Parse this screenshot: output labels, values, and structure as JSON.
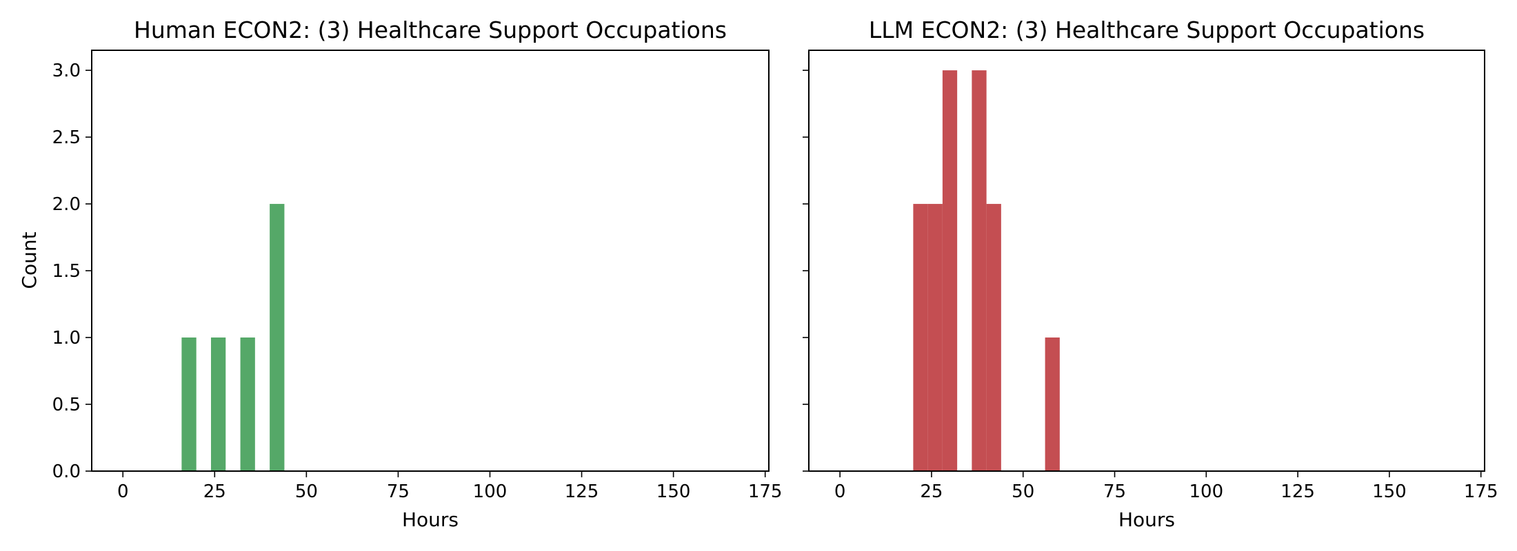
{
  "colors": {
    "human": "#55a868",
    "llm": "#c44e52",
    "axes": "#000000",
    "background": "#ffffff"
  },
  "chart_data": [
    {
      "type": "bar",
      "title": "Human ECON2: (3) Healthcare Support Occupations",
      "xlabel": "Hours",
      "ylabel": "Count",
      "xlim": [
        -8.5,
        176
      ],
      "ylim": [
        0,
        3.15
      ],
      "xticks": [
        0,
        25,
        50,
        75,
        100,
        125,
        150,
        175
      ],
      "xtick_labels": [
        "0",
        "25",
        "50",
        "75",
        "100",
        "125",
        "150",
        "175"
      ],
      "yticks": [
        0,
        0.5,
        1.0,
        1.5,
        2.0,
        2.5,
        3.0
      ],
      "ytick_labels": [
        "0.0",
        "0.5",
        "1.0",
        "1.5",
        "2.0",
        "2.5",
        "3.0"
      ],
      "color": "#55a868",
      "bins": [
        {
          "x0": 16,
          "x1": 20,
          "count": 1
        },
        {
          "x0": 24,
          "x1": 28,
          "count": 1
        },
        {
          "x0": 32,
          "x1": 36,
          "count": 1
        },
        {
          "x0": 40,
          "x1": 44,
          "count": 2
        }
      ]
    },
    {
      "type": "bar",
      "title": "LLM ECON2: (3) Healthcare Support Occupations",
      "xlabel": "Hours",
      "ylabel": "",
      "xlim": [
        -8.5,
        176
      ],
      "ylim": [
        0,
        3.15
      ],
      "xticks": [
        0,
        25,
        50,
        75,
        100,
        125,
        150,
        175
      ],
      "xtick_labels": [
        "0",
        "25",
        "50",
        "75",
        "100",
        "125",
        "150",
        "175"
      ],
      "yticks": [
        0,
        0.5,
        1.0,
        1.5,
        2.0,
        2.5,
        3.0
      ],
      "ytick_labels": [],
      "color": "#c44e52",
      "bins": [
        {
          "x0": 20,
          "x1": 24,
          "count": 2
        },
        {
          "x0": 24,
          "x1": 28,
          "count": 2
        },
        {
          "x0": 28,
          "x1": 32,
          "count": 3
        },
        {
          "x0": 36,
          "x1": 40,
          "count": 3
        },
        {
          "x0": 40,
          "x1": 44,
          "count": 2
        },
        {
          "x0": 56,
          "x1": 60,
          "count": 1
        }
      ]
    }
  ]
}
